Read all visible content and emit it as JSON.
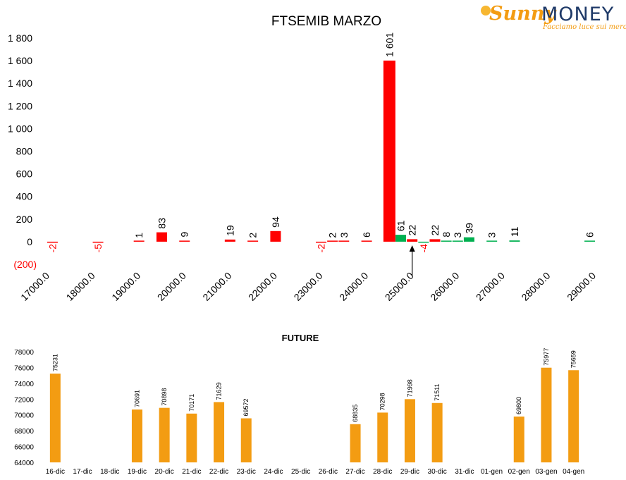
{
  "logo": {
    "brand_part1": "Sunny",
    "brand_part2": "MONEY",
    "tagline": "Facciamo luce sui mercati"
  },
  "chart_data": [
    {
      "type": "bar",
      "title": "FTSEMIB MARZO",
      "x_ticks": [
        "17000.0",
        "18000.0",
        "19000.0",
        "20000.0",
        "21000.0",
        "22000.0",
        "23000.0",
        "24000.0",
        "25000.0",
        "26000.0",
        "27000.0",
        "28000.0",
        "29000.0"
      ],
      "y_ticks": [
        "(200)",
        "0",
        "200",
        "400",
        "600",
        "800",
        "1 000",
        "1 200",
        "1 400",
        "1 600",
        "1 800"
      ],
      "ylim": [
        -200,
        1800
      ],
      "xlim": [
        17000,
        29000
      ],
      "grid": false,
      "colors": {
        "negative": "#ff0000",
        "positive": "#00b050",
        "label_default": "#000000"
      },
      "bars": [
        {
          "x": 17100,
          "value": -2,
          "label": "-2",
          "color": "#ff0000"
        },
        {
          "x": 18100,
          "value": -5,
          "label": "-5",
          "color": "#ff0000"
        },
        {
          "x": 19000,
          "value": 1,
          "label": "1",
          "color": "#ff0000"
        },
        {
          "x": 19500,
          "value": 83,
          "label": "83",
          "color": "#ff0000"
        },
        {
          "x": 20000,
          "value": 9,
          "label": "9",
          "color": "#ff0000"
        },
        {
          "x": 21000,
          "value": 19,
          "label": "19",
          "color": "#ff0000"
        },
        {
          "x": 21500,
          "value": 2,
          "label": "2",
          "color": "#ff0000"
        },
        {
          "x": 22000,
          "value": 94,
          "label": "94",
          "color": "#ff0000"
        },
        {
          "x": 23000,
          "value": -2,
          "label": "-2",
          "color": "#ff0000"
        },
        {
          "x": 23250,
          "value": 2,
          "label": "2",
          "color": "#ff0000"
        },
        {
          "x": 23500,
          "value": 3,
          "label": "3",
          "color": "#ff0000"
        },
        {
          "x": 24000,
          "value": 6,
          "label": "6",
          "color": "#ff0000"
        },
        {
          "x": 24500,
          "value": 1601,
          "label": "1 601",
          "color": "#ff0000"
        },
        {
          "x": 24750,
          "value": 61,
          "label": "61",
          "color": "#00b050"
        },
        {
          "x": 25000,
          "value": 22,
          "label": "22",
          "color": "#ff0000"
        },
        {
          "x": 25250,
          "value": -4,
          "label": "-4",
          "color": "#00b050"
        },
        {
          "x": 25500,
          "value": 22,
          "label": "22",
          "color": "#ff0000"
        },
        {
          "x": 25750,
          "value": 8,
          "label": "8",
          "color": "#00b050"
        },
        {
          "x": 26000,
          "value": 3,
          "label": "3",
          "color": "#00b050"
        },
        {
          "x": 26250,
          "value": 39,
          "label": "39",
          "color": "#00b050"
        },
        {
          "x": 26750,
          "value": 3,
          "label": "3",
          "color": "#00b050"
        },
        {
          "x": 27250,
          "value": 11,
          "label": "11",
          "color": "#00b050"
        },
        {
          "x": 28900,
          "value": 6,
          "label": "6",
          "color": "#00b050"
        }
      ],
      "annotation": {
        "type": "arrow",
        "x": 25000
      }
    },
    {
      "type": "bar",
      "title": "FUTURE",
      "categories": [
        "16-dic",
        "17-dic",
        "18-dic",
        "19-dic",
        "20-dic",
        "21-dic",
        "22-dic",
        "23-dic",
        "24-dic",
        "25-dic",
        "26-dic",
        "27-dic",
        "28-dic",
        "29-dic",
        "30-dic",
        "31-dic",
        "01-gen",
        "02-gen",
        "03-gen",
        "04-gen"
      ],
      "values": [
        75231,
        null,
        null,
        70691,
        70898,
        70171,
        71629,
        69572,
        null,
        null,
        null,
        68835,
        70298,
        71998,
        71511,
        null,
        null,
        69800,
        75977,
        75659
      ],
      "value_labels": [
        "75231",
        "",
        "",
        "70691",
        "70898",
        "70171",
        "71629",
        "69572",
        "",
        "",
        "",
        "68835",
        "70298",
        "71998",
        "71511",
        "",
        "",
        "69800",
        "75977",
        "75659"
      ],
      "y_ticks": [
        "64000",
        "66000",
        "68000",
        "70000",
        "72000",
        "74000",
        "76000",
        "78000"
      ],
      "ylim": [
        64000,
        78000
      ],
      "grid": false,
      "color": "#f39c12"
    }
  ]
}
